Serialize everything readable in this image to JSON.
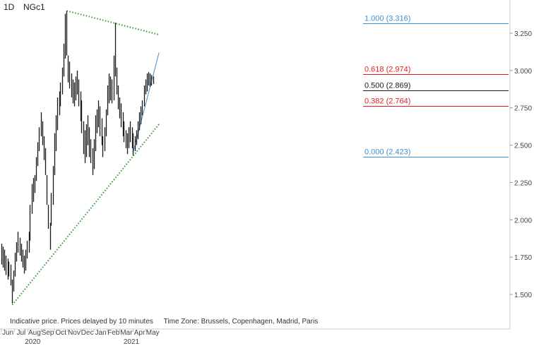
{
  "header": {
    "interval": "1D",
    "symbol": "NGc1"
  },
  "notice": {
    "disclaimer": "Indicative price. Prices delayed by 10 minutes",
    "timezone": "Time Zone: Brussels, Copenhagen, Madrid, Paris"
  },
  "colors": {
    "bars": "#1a1a1a",
    "trendline": "#2e9a2e",
    "fib_blue": "#3a8fd6",
    "fib_red": "#e02020",
    "fib_black": "#1a1a1a",
    "axis_text": "#444444"
  },
  "chart_data": {
    "type": "ohlc",
    "title": "",
    "ylim": [
      1.42,
      3.44
    ],
    "y_ticks": [
      "1.500",
      "1.750",
      "2.000",
      "2.250",
      "2.500",
      "2.750",
      "3.000",
      "3.250"
    ],
    "y_tick_values": [
      1.5,
      1.75,
      2.0,
      2.25,
      2.5,
      2.75,
      3.0,
      3.25
    ],
    "x_months": [
      "Jun",
      "Jul",
      "Aug",
      "Sep",
      "Oct",
      "Nov",
      "Dec",
      "Jan",
      "Feb",
      "Mar",
      "Apr",
      "May"
    ],
    "x_years": [
      "2020",
      "2021"
    ],
    "grid": false,
    "fibonacci": [
      {
        "label": "1.000 (3.316)",
        "value": 3.316,
        "color": "blue"
      },
      {
        "label": "0.618 (2.974)",
        "value": 2.974,
        "color": "red"
      },
      {
        "label": "0.500 (2.869)",
        "value": 2.869,
        "color": "black"
      },
      {
        "label": "0.382 (2.764)",
        "value": 2.764,
        "color": "red"
      },
      {
        "label": "0.000 (2.423)",
        "value": 2.423,
        "color": "blue"
      }
    ],
    "trendlines": [
      {
        "style": "dotted",
        "color": "green",
        "from": {
          "date": "2020-10-30",
          "value": 3.4
        },
        "to": {
          "date": "2021-05-31",
          "value": 3.24
        }
      },
      {
        "style": "dotted",
        "color": "green",
        "from": {
          "date": "2020-06-26",
          "value": 1.43
        },
        "to": {
          "date": "2021-05-31",
          "value": 2.64
        }
      },
      {
        "style": "solid",
        "color": "blue",
        "from": {
          "date": "2021-04-01",
          "value": 2.45
        },
        "to": {
          "date": "2021-05-31",
          "value": 3.12
        }
      }
    ],
    "series": [
      {
        "name": "",
        "points": [
          {
            "d": "2020-06-01",
            "h": 1.84,
            "l": 1.7
          },
          {
            "d": "2020-06-04",
            "h": 1.82,
            "l": 1.68
          },
          {
            "d": "2020-06-08",
            "h": 1.8,
            "l": 1.66
          },
          {
            "d": "2020-06-11",
            "h": 1.76,
            "l": 1.63
          },
          {
            "d": "2020-06-15",
            "h": 1.74,
            "l": 1.6
          },
          {
            "d": "2020-06-18",
            "h": 1.72,
            "l": 1.62
          },
          {
            "d": "2020-06-22",
            "h": 1.7,
            "l": 1.56
          },
          {
            "d": "2020-06-25",
            "h": 1.6,
            "l": 1.44
          },
          {
            "d": "2020-06-29",
            "h": 1.66,
            "l": 1.52
          },
          {
            "d": "2020-07-02",
            "h": 1.78,
            "l": 1.62
          },
          {
            "d": "2020-07-06",
            "h": 1.85,
            "l": 1.72
          },
          {
            "d": "2020-07-09",
            "h": 1.92,
            "l": 1.78
          },
          {
            "d": "2020-07-13",
            "h": 1.88,
            "l": 1.76
          },
          {
            "d": "2020-07-16",
            "h": 1.84,
            "l": 1.72
          },
          {
            "d": "2020-07-20",
            "h": 1.8,
            "l": 1.68
          },
          {
            "d": "2020-07-23",
            "h": 1.76,
            "l": 1.64
          },
          {
            "d": "2020-07-27",
            "h": 1.8,
            "l": 1.66
          },
          {
            "d": "2020-07-30",
            "h": 1.86,
            "l": 1.74
          },
          {
            "d": "2020-08-03",
            "h": 1.92,
            "l": 1.78
          },
          {
            "d": "2020-08-06",
            "h": 2.1,
            "l": 1.86
          },
          {
            "d": "2020-08-10",
            "h": 2.24,
            "l": 2.04
          },
          {
            "d": "2020-08-13",
            "h": 2.28,
            "l": 2.12
          },
          {
            "d": "2020-08-17",
            "h": 2.3,
            "l": 2.18
          },
          {
            "d": "2020-08-20",
            "h": 2.42,
            "l": 2.26
          },
          {
            "d": "2020-08-24",
            "h": 2.52,
            "l": 2.36
          },
          {
            "d": "2020-08-27",
            "h": 2.62,
            "l": 2.46
          },
          {
            "d": "2020-08-31",
            "h": 2.72,
            "l": 2.56
          },
          {
            "d": "2020-09-03",
            "h": 2.66,
            "l": 2.5
          },
          {
            "d": "2020-09-07",
            "h": 2.56,
            "l": 2.4
          },
          {
            "d": "2020-09-10",
            "h": 2.48,
            "l": 2.3
          },
          {
            "d": "2020-09-14",
            "h": 2.3,
            "l": 2.1
          },
          {
            "d": "2020-09-17",
            "h": 2.1,
            "l": 1.94
          },
          {
            "d": "2020-09-21",
            "h": 1.98,
            "l": 1.8
          },
          {
            "d": "2020-09-24",
            "h": 2.18,
            "l": 1.96
          },
          {
            "d": "2020-09-28",
            "h": 2.36,
            "l": 2.1
          },
          {
            "d": "2020-10-01",
            "h": 2.58,
            "l": 2.3
          },
          {
            "d": "2020-10-05",
            "h": 2.7,
            "l": 2.46
          },
          {
            "d": "2020-10-08",
            "h": 2.82,
            "l": 2.6
          },
          {
            "d": "2020-10-12",
            "h": 2.86,
            "l": 2.7
          },
          {
            "d": "2020-10-15",
            "h": 2.92,
            "l": 2.76
          },
          {
            "d": "2020-10-19",
            "h": 3.02,
            "l": 2.84
          },
          {
            "d": "2020-10-22",
            "h": 3.18,
            "l": 2.96
          },
          {
            "d": "2020-10-26",
            "h": 3.38,
            "l": 3.08
          },
          {
            "d": "2020-10-29",
            "h": 3.4,
            "l": 3.1
          },
          {
            "d": "2020-11-02",
            "h": 3.1,
            "l": 2.92
          },
          {
            "d": "2020-11-05",
            "h": 3.06,
            "l": 2.88
          },
          {
            "d": "2020-11-09",
            "h": 2.98,
            "l": 2.82
          },
          {
            "d": "2020-11-12",
            "h": 2.94,
            "l": 2.78
          },
          {
            "d": "2020-11-16",
            "h": 2.92,
            "l": 2.76
          },
          {
            "d": "2020-11-19",
            "h": 2.96,
            "l": 2.8
          },
          {
            "d": "2020-11-23",
            "h": 3.0,
            "l": 2.84
          },
          {
            "d": "2020-11-26",
            "h": 2.94,
            "l": 2.76
          },
          {
            "d": "2020-11-30",
            "h": 2.86,
            "l": 2.66
          },
          {
            "d": "2020-12-03",
            "h": 2.8,
            "l": 2.58
          },
          {
            "d": "2020-12-07",
            "h": 2.66,
            "l": 2.44
          },
          {
            "d": "2020-12-10",
            "h": 2.6,
            "l": 2.38
          },
          {
            "d": "2020-12-14",
            "h": 2.64,
            "l": 2.42
          },
          {
            "d": "2020-12-17",
            "h": 2.7,
            "l": 2.5
          },
          {
            "d": "2020-12-21",
            "h": 2.62,
            "l": 2.42
          },
          {
            "d": "2020-12-24",
            "h": 2.54,
            "l": 2.38
          },
          {
            "d": "2020-12-28",
            "h": 2.48,
            "l": 2.3
          },
          {
            "d": "2020-12-31",
            "h": 2.54,
            "l": 2.34
          },
          {
            "d": "2021-01-04",
            "h": 2.7,
            "l": 2.46
          },
          {
            "d": "2021-01-07",
            "h": 2.74,
            "l": 2.58
          },
          {
            "d": "2021-01-11",
            "h": 2.8,
            "l": 2.62
          },
          {
            "d": "2021-01-14",
            "h": 2.76,
            "l": 2.56
          },
          {
            "d": "2021-01-18",
            "h": 2.68,
            "l": 2.5
          },
          {
            "d": "2021-01-21",
            "h": 2.56,
            "l": 2.42
          },
          {
            "d": "2021-01-25",
            "h": 2.62,
            "l": 2.46
          },
          {
            "d": "2021-01-28",
            "h": 2.74,
            "l": 2.56
          },
          {
            "d": "2021-02-01",
            "h": 2.9,
            "l": 2.7
          },
          {
            "d": "2021-02-04",
            "h": 2.98,
            "l": 2.78
          },
          {
            "d": "2021-02-08",
            "h": 2.96,
            "l": 2.8
          },
          {
            "d": "2021-02-11",
            "h": 2.94,
            "l": 2.78
          },
          {
            "d": "2021-02-15",
            "h": 3.1,
            "l": 2.8
          },
          {
            "d": "2021-02-18",
            "h": 3.32,
            "l": 2.96
          },
          {
            "d": "2021-02-22",
            "h": 3.02,
            "l": 2.84
          },
          {
            "d": "2021-02-25",
            "h": 2.9,
            "l": 2.74
          },
          {
            "d": "2021-03-01",
            "h": 2.82,
            "l": 2.68
          },
          {
            "d": "2021-03-04",
            "h": 2.78,
            "l": 2.62
          },
          {
            "d": "2021-03-08",
            "h": 2.72,
            "l": 2.56
          },
          {
            "d": "2021-03-11",
            "h": 2.66,
            "l": 2.52
          },
          {
            "d": "2021-03-15",
            "h": 2.6,
            "l": 2.48
          },
          {
            "d": "2021-03-18",
            "h": 2.58,
            "l": 2.44
          },
          {
            "d": "2021-03-22",
            "h": 2.62,
            "l": 2.48
          },
          {
            "d": "2021-03-25",
            "h": 2.66,
            "l": 2.52
          },
          {
            "d": "2021-03-29",
            "h": 2.62,
            "l": 2.48
          },
          {
            "d": "2021-04-01",
            "h": 2.58,
            "l": 2.43
          },
          {
            "d": "2021-04-05",
            "h": 2.56,
            "l": 2.46
          },
          {
            "d": "2021-04-08",
            "h": 2.6,
            "l": 2.5
          },
          {
            "d": "2021-04-12",
            "h": 2.66,
            "l": 2.54
          },
          {
            "d": "2021-04-15",
            "h": 2.72,
            "l": 2.6
          },
          {
            "d": "2021-04-19",
            "h": 2.76,
            "l": 2.64
          },
          {
            "d": "2021-04-22",
            "h": 2.8,
            "l": 2.7
          },
          {
            "d": "2021-04-26",
            "h": 2.9,
            "l": 2.76
          },
          {
            "d": "2021-04-29",
            "h": 2.94,
            "l": 2.84
          },
          {
            "d": "2021-05-03",
            "h": 2.98,
            "l": 2.86
          },
          {
            "d": "2021-05-06",
            "h": 2.99,
            "l": 2.9
          },
          {
            "d": "2021-05-10",
            "h": 2.98,
            "l": 2.89
          },
          {
            "d": "2021-05-13",
            "h": 2.97,
            "l": 2.9
          },
          {
            "d": "2021-05-17",
            "h": 2.96,
            "l": 2.91
          }
        ]
      }
    ]
  }
}
